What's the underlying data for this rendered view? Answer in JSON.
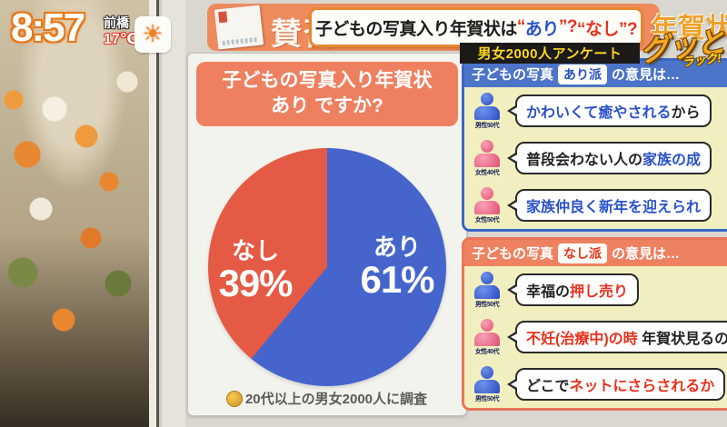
{
  "icons": {
    "sun": "☀"
  },
  "clock": {
    "time": "8:57",
    "location": "前橋",
    "temperature": "17℃"
  },
  "banner": {
    "back_label": "賛否",
    "back_right": "年賀状",
    "headline": {
      "pre": "子どもの写真入り年賀状は",
      "quote_open": "“",
      "ari": "あり",
      "quote_close": "”?",
      "nashi_full": "“なし”?"
    },
    "subtitle": "男女2000人アンケート"
  },
  "logo": {
    "main": "グッと",
    "sub": "ラック!"
  },
  "pie_panel": {
    "title_line1": "子どもの写真入り年賀状",
    "title_line2": "あり ですか?",
    "labels": {
      "nashi": {
        "name": "なし",
        "pct": "39%"
      },
      "ari": {
        "name": "あり",
        "pct": "61%"
      }
    },
    "note": "20代以上の男女2000人に調査"
  },
  "chart_data": {
    "type": "pie",
    "title": "子どもの写真入り年賀状 あり ですか?",
    "slices": [
      {
        "label": "あり",
        "value": 61,
        "color": "#4565cd"
      },
      {
        "label": "なし",
        "value": 39,
        "color": "#e55a44"
      }
    ],
    "unit": "%",
    "start_angle_deg": 0,
    "direction": "clockwise",
    "source_note": "20代以上の男女2000人に調査"
  },
  "opinions": {
    "ari": {
      "header_pre": "子どもの写真",
      "header_tag": "あり派",
      "header_post": "の意見は…",
      "items": [
        {
          "person": "男性50代",
          "gender": "male",
          "seg1": "かわいくて癒やされる",
          "seg2": "から"
        },
        {
          "person": "女性40代",
          "gender": "female",
          "seg1": "普段会わない人の",
          "seg2": "家族の成"
        },
        {
          "person": "女性50代",
          "gender": "female",
          "seg1": "家族仲良く新年を迎えられ",
          "seg2": ""
        }
      ]
    },
    "nashi": {
      "header_pre": "子どもの写真",
      "header_tag": "なし派",
      "header_post": "の意見は…",
      "items": [
        {
          "person": "男性50代",
          "gender": "male",
          "seg1": "幸福の",
          "seg2": "押し売り"
        },
        {
          "person": "女性40代",
          "gender": "female",
          "seg1": "不妊(治療中)の時",
          "seg2": " 年賀状見るの子ど"
        },
        {
          "person": "男性50代",
          "gender": "male",
          "seg1": "どこで",
          "seg2": "ネットにさらされるか"
        }
      ]
    }
  }
}
